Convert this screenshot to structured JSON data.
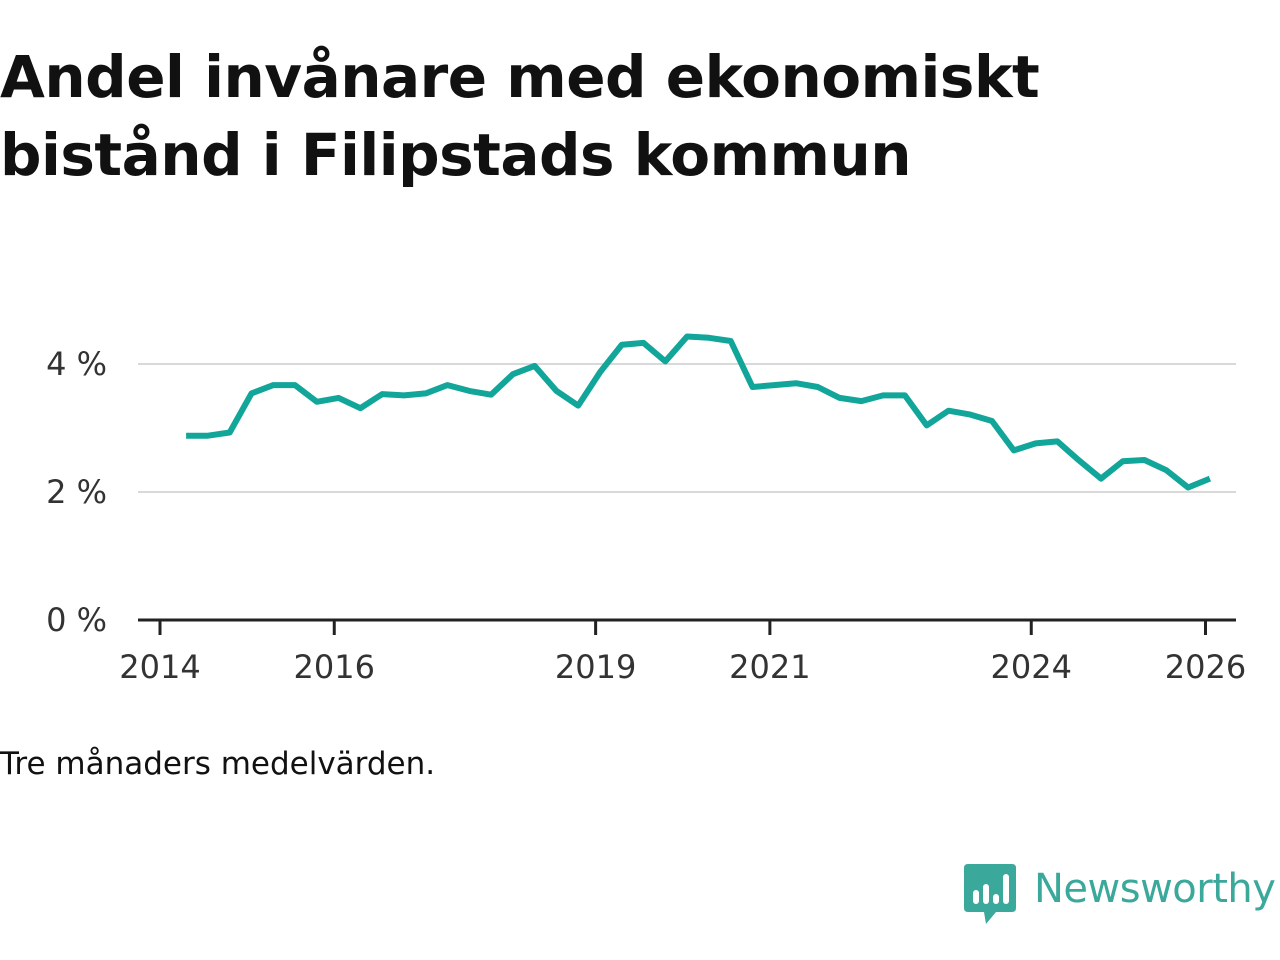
{
  "chart_data": {
    "type": "line",
    "title": "Andel invånare med ekonomiskt bistånd i Filipstads kommun",
    "title_lines": [
      "Andel invånare med ekonomiskt",
      "bistånd i Filipstads kommun"
    ],
    "note": "Tre månaders medelvärden.",
    "xlabel": "",
    "ylabel": "",
    "ylim": [
      0,
      4.6
    ],
    "xlim": [
      2014,
      2026.35
    ],
    "yticks": [
      {
        "value": 0,
        "label": "0 %"
      },
      {
        "value": 2,
        "label": "2 %"
      },
      {
        "value": 4,
        "label": "4 %"
      }
    ],
    "xticks": [
      {
        "value": 2014,
        "label": "2014"
      },
      {
        "value": 2016,
        "label": "2016"
      },
      {
        "value": 2019,
        "label": "2019"
      },
      {
        "value": 2021,
        "label": "2021"
      },
      {
        "value": 2024,
        "label": "2024"
      },
      {
        "value": 2026,
        "label": "2026"
      }
    ],
    "grid": true,
    "series": [
      {
        "name": "Andel invånare med ekonomiskt bistånd",
        "color": "#12a59a",
        "x": [
          2014.3,
          2014.55,
          2014.8,
          2015.05,
          2015.3,
          2015.55,
          2015.8,
          2016.05,
          2016.3,
          2016.55,
          2016.8,
          2017.05,
          2017.3,
          2017.55,
          2017.8,
          2018.05,
          2018.3,
          2018.55,
          2018.8,
          2019.05,
          2019.3,
          2019.55,
          2019.8,
          2020.05,
          2020.3,
          2020.55,
          2020.8,
          2021.05,
          2021.3,
          2021.55,
          2021.8,
          2022.05,
          2022.3,
          2022.55,
          2022.8,
          2023.05,
          2023.3,
          2023.55,
          2023.8,
          2024.05,
          2024.3,
          2024.55,
          2024.8,
          2025.05,
          2025.3,
          2025.55,
          2025.8,
          2026.05
        ],
        "values": [
          2.88,
          2.88,
          2.93,
          3.54,
          3.67,
          3.67,
          3.41,
          3.47,
          3.31,
          3.53,
          3.51,
          3.54,
          3.67,
          3.58,
          3.52,
          3.84,
          3.97,
          3.58,
          3.35,
          3.87,
          4.3,
          4.33,
          4.04,
          4.43,
          4.41,
          4.36,
          3.64,
          3.67,
          3.7,
          3.64,
          3.47,
          3.42,
          3.51,
          3.51,
          3.04,
          3.27,
          3.21,
          3.11,
          2.65,
          2.76,
          2.79,
          2.49,
          2.21,
          2.48,
          2.5,
          2.34,
          2.07,
          2.21
        ]
      }
    ]
  },
  "brand": {
    "name": "Newsworthy",
    "color": "#3aa89a",
    "icon": "newsworthy-logo-icon"
  }
}
